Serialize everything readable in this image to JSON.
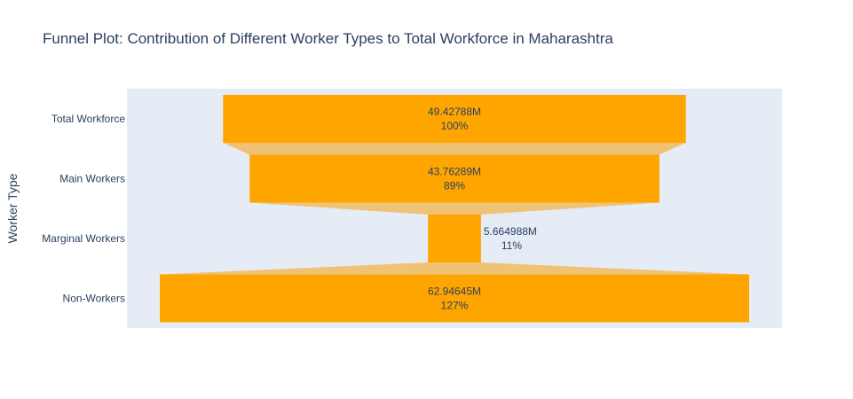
{
  "title": "Funnel Plot: Contribution of Different Worker Types to Total Workforce in Maharashtra",
  "chart_data": {
    "type": "funnel",
    "title": "Funnel Plot: Contribution of Different Worker Types to Total Workforce in Maharashtra",
    "ylabel": "Worker Type",
    "categories": [
      "Total Workforce",
      "Main Workers",
      "Marginal Workers",
      "Non-Workers"
    ],
    "values": [
      49427880,
      43762890,
      5664988,
      62946450
    ],
    "value_labels": [
      "49.42788M",
      "43.76289M",
      "5.664988M",
      "62.94645M"
    ],
    "percent_labels": [
      "100%",
      "89%",
      "11%",
      "127%"
    ],
    "bar_color": "#FFA500",
    "connector_color": "#F0C275",
    "plot_background": "#E5ECF6"
  }
}
